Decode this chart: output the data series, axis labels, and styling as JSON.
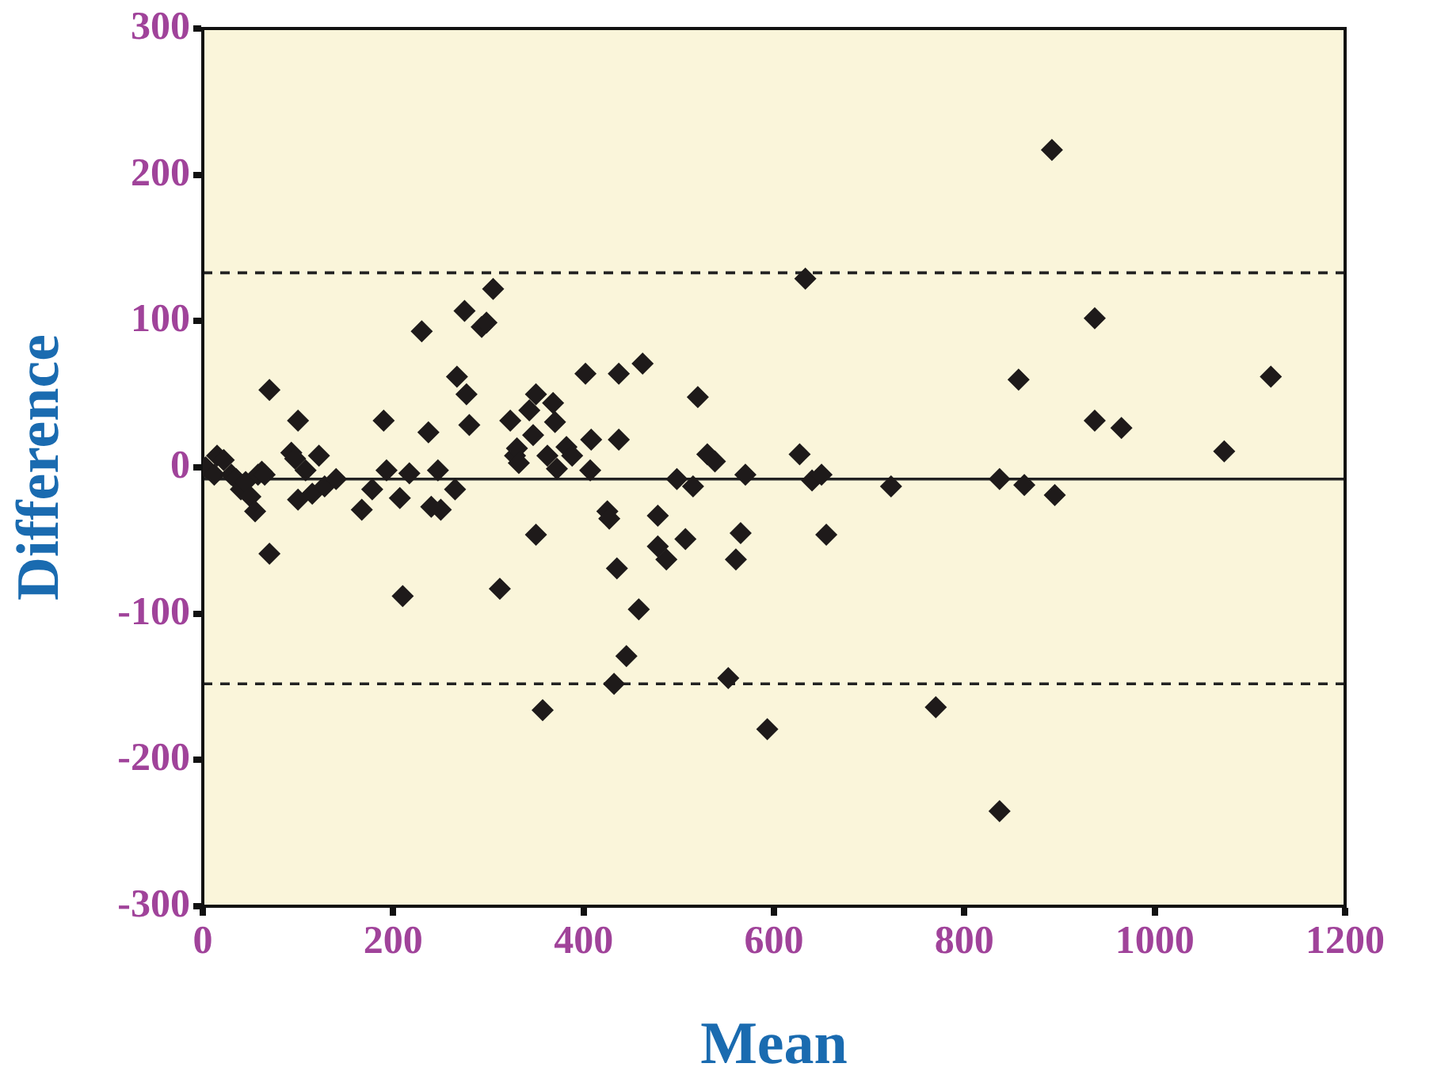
{
  "chart_data": {
    "type": "scatter",
    "xlabel": "Mean",
    "ylabel": "Difference",
    "x": [
      3,
      12,
      15,
      22,
      30,
      35,
      40,
      45,
      50,
      55,
      58,
      62,
      65,
      70,
      70,
      93,
      97,
      100,
      100,
      108,
      115,
      122,
      128,
      140,
      167,
      178,
      190,
      193,
      207,
      210,
      217,
      230,
      237,
      240,
      247,
      250,
      265,
      267,
      275,
      277,
      280,
      293,
      298,
      305,
      312,
      323,
      328,
      330,
      332,
      343,
      347,
      350,
      350,
      357,
      362,
      368,
      370,
      372,
      382,
      388,
      402,
      407,
      408,
      425,
      427,
      432,
      435,
      437,
      437,
      445,
      458,
      462,
      478,
      478,
      487,
      498,
      507,
      515,
      520,
      530,
      538,
      552,
      560,
      565,
      570,
      593,
      627,
      633,
      640,
      650,
      655,
      723,
      770,
      837,
      837,
      857,
      863,
      892,
      895,
      937,
      937,
      965,
      1073,
      1122
    ],
    "values": [
      0,
      -5,
      8,
      5,
      -5,
      -8,
      -15,
      -10,
      -20,
      -30,
      -5,
      -3,
      -5,
      53,
      -59,
      10,
      6,
      -22,
      32,
      -2,
      -18,
      8,
      -13,
      -8,
      -29,
      -15,
      32,
      -2,
      -21,
      -88,
      -4,
      93,
      24,
      -27,
      -2,
      -29,
      -15,
      62,
      107,
      50,
      29,
      96,
      99,
      122,
      -83,
      32,
      8,
      13,
      3,
      39,
      22,
      -46,
      50,
      -166,
      8,
      44,
      31,
      -1,
      14,
      8,
      64,
      -2,
      19,
      -30,
      -35,
      -148,
      -69,
      64,
      19,
      -129,
      -97,
      71,
      -33,
      -54,
      -63,
      -8,
      -49,
      -13,
      48,
      9,
      4,
      -144,
      -63,
      -45,
      -5,
      -179,
      9,
      129,
      -9,
      -5,
      -46,
      -13,
      -164,
      -8,
      -235,
      60,
      -12,
      217,
      -19,
      102,
      32,
      27,
      11,
      62
    ],
    "color": "#1e1a1a",
    "marker": "diamond",
    "xlim": [
      0,
      1200
    ],
    "xticks": [
      0,
      200,
      400,
      600,
      800,
      1000,
      1200
    ],
    "ylim": [
      -300,
      300
    ],
    "yticks": [
      300,
      200,
      100,
      0,
      -100,
      -200,
      -300
    ],
    "ref_lines": [
      {
        "axis": "y",
        "value": -8,
        "line_style": "solid"
      },
      {
        "axis": "y",
        "value": 133,
        "line_style": "dashed"
      },
      {
        "axis": "y",
        "value": -148,
        "line_style": "dashed"
      }
    ],
    "grid": false,
    "legend": false
  }
}
